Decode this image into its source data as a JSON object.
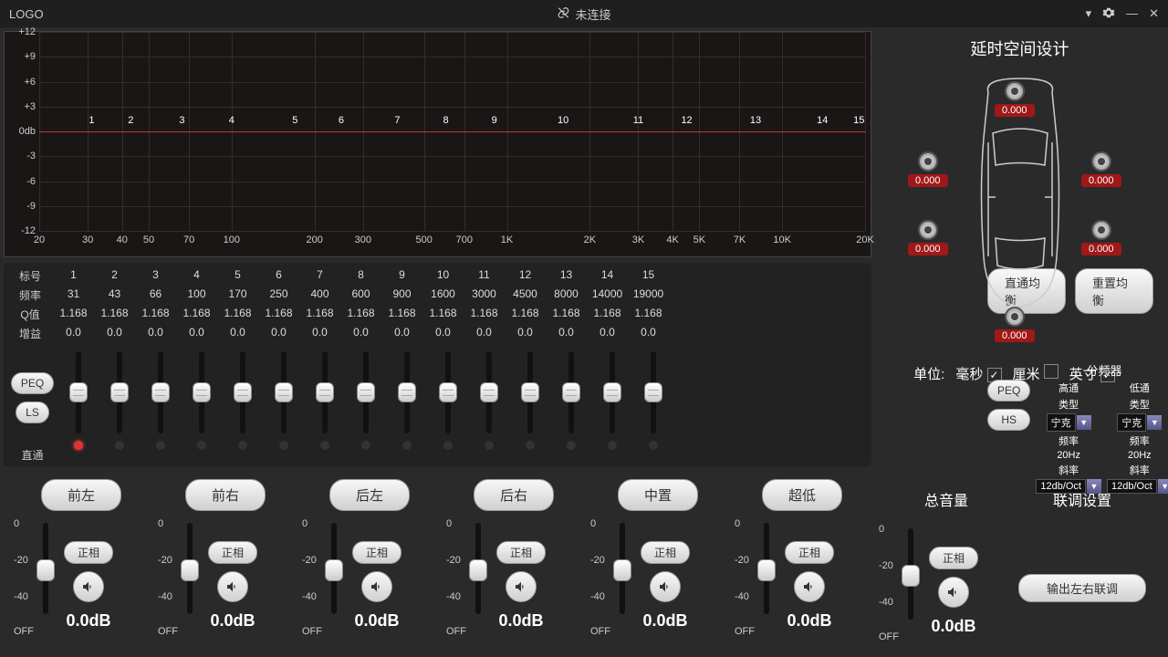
{
  "header": {
    "logo": "LOGO",
    "status": "未连接"
  },
  "chart": {
    "y_ticks": [
      "+12",
      "+9",
      "+6",
      "+3",
      "0db",
      "-3",
      "-6",
      "-9",
      "-12"
    ],
    "x_ticks": [
      "20",
      "30",
      "40",
      "50",
      "70",
      "100",
      "200",
      "300",
      "500",
      "700",
      "1K",
      "2K",
      "3K",
      "4K",
      "5K",
      "7K",
      "10K",
      "20K"
    ],
    "band_numbers": [
      "1",
      "2",
      "3",
      "4",
      "5",
      "6",
      "7",
      "8",
      "9",
      "10",
      "11",
      "12",
      "13",
      "14",
      "15"
    ],
    "grid_color": "#3a2a2a",
    "zero_line_color": "#cc3333"
  },
  "eq": {
    "row_labels": {
      "band": "标号",
      "freq": "频率",
      "q": "Q值",
      "gain": "增益"
    },
    "bands": [
      "1",
      "2",
      "3",
      "4",
      "5",
      "6",
      "7",
      "8",
      "9",
      "10",
      "11",
      "12",
      "13",
      "14",
      "15"
    ],
    "freqs": [
      "31",
      "43",
      "66",
      "100",
      "170",
      "250",
      "400",
      "600",
      "900",
      "1600",
      "3000",
      "4500",
      "8000",
      "14000",
      "19000"
    ],
    "qs": [
      "1.168",
      "1.168",
      "1.168",
      "1.168",
      "1.168",
      "1.168",
      "1.168",
      "1.168",
      "1.168",
      "1.168",
      "1.168",
      "1.168",
      "1.168",
      "1.168",
      "1.168"
    ],
    "gains": [
      "0.0",
      "0.0",
      "0.0",
      "0.0",
      "0.0",
      "0.0",
      "0.0",
      "0.0",
      "0.0",
      "0.0",
      "0.0",
      "0.0",
      "0.0",
      "0.0",
      "0.0"
    ],
    "btn_peq": "PEQ",
    "btn_ls": "LS",
    "pass_label": "直通",
    "btn_bypass": "直通均衡",
    "btn_reset": "重置均衡",
    "btn_peq2": "PEQ",
    "btn_hs": "HS"
  },
  "xover": {
    "title": "分频器",
    "hp_label": "高通",
    "lp_label": "低通",
    "type_label": "类型",
    "freq_label": "频率",
    "slope_label": "斜率",
    "type_val": "宁克",
    "freq_val": "20Hz",
    "slope_val": "12db/Oct"
  },
  "delay": {
    "title": "延时空间设计",
    "speakers": [
      {
        "pos": "top",
        "val": "0.000"
      },
      {
        "pos": "fl",
        "val": "0.000"
      },
      {
        "pos": "fr",
        "val": "0.000"
      },
      {
        "pos": "rl",
        "val": "0.000"
      },
      {
        "pos": "rr",
        "val": "0.000"
      },
      {
        "pos": "bottom",
        "val": "0.000"
      }
    ],
    "unit_label": "单位:",
    "units": [
      {
        "label": "毫秒",
        "checked": true
      },
      {
        "label": "厘米",
        "checked": false
      },
      {
        "label": "英寸",
        "checked": true
      }
    ]
  },
  "channels": [
    {
      "name": "前左",
      "phase": "正相",
      "db": "0.0dB",
      "off": "OFF",
      "scale": [
        "0",
        "-20",
        "-40"
      ]
    },
    {
      "name": "前右",
      "phase": "正相",
      "db": "0.0dB",
      "off": "OFF",
      "scale": [
        "0",
        "-20",
        "-40"
      ]
    },
    {
      "name": "后左",
      "phase": "正相",
      "db": "0.0dB",
      "off": "OFF",
      "scale": [
        "0",
        "-20",
        "-40"
      ]
    },
    {
      "name": "后右",
      "phase": "正相",
      "db": "0.0dB",
      "off": "OFF",
      "scale": [
        "0",
        "-20",
        "-40"
      ]
    },
    {
      "name": "中置",
      "phase": "正相",
      "db": "0.0dB",
      "off": "OFF",
      "scale": [
        "0",
        "-20",
        "-40"
      ]
    },
    {
      "name": "超低",
      "phase": "正相",
      "db": "0.0dB",
      "off": "OFF",
      "scale": [
        "0",
        "-20",
        "-40"
      ]
    }
  ],
  "master": {
    "title": "总音量",
    "phase": "正相",
    "db": "0.0dB",
    "off": "OFF",
    "scale": [
      "0",
      "-20",
      "-40"
    ]
  },
  "link": {
    "title": "联调设置",
    "btn": "输出左右联调"
  }
}
